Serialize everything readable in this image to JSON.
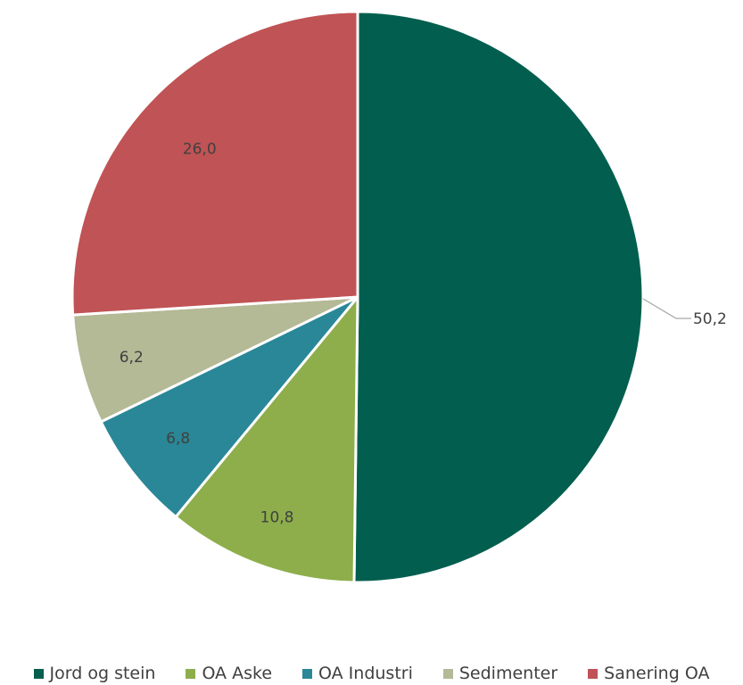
{
  "chart_data": {
    "type": "pie",
    "categories": [
      "Jord og stein",
      "OA Aske",
      "OA Industri",
      "Sedimenter",
      "Sanering OA"
    ],
    "values": [
      50.2,
      10.8,
      6.8,
      6.2,
      26.0
    ],
    "data_labels": [
      "50,2",
      "10,8",
      "6,8",
      "6,2",
      "26,0"
    ],
    "colors": [
      "#025E4E",
      "#8DAE4B",
      "#2A8797",
      "#B4B996",
      "#C05355"
    ],
    "start_angle_deg": 0,
    "direction": "clockwise",
    "legend_position": "bottom",
    "title": ""
  }
}
